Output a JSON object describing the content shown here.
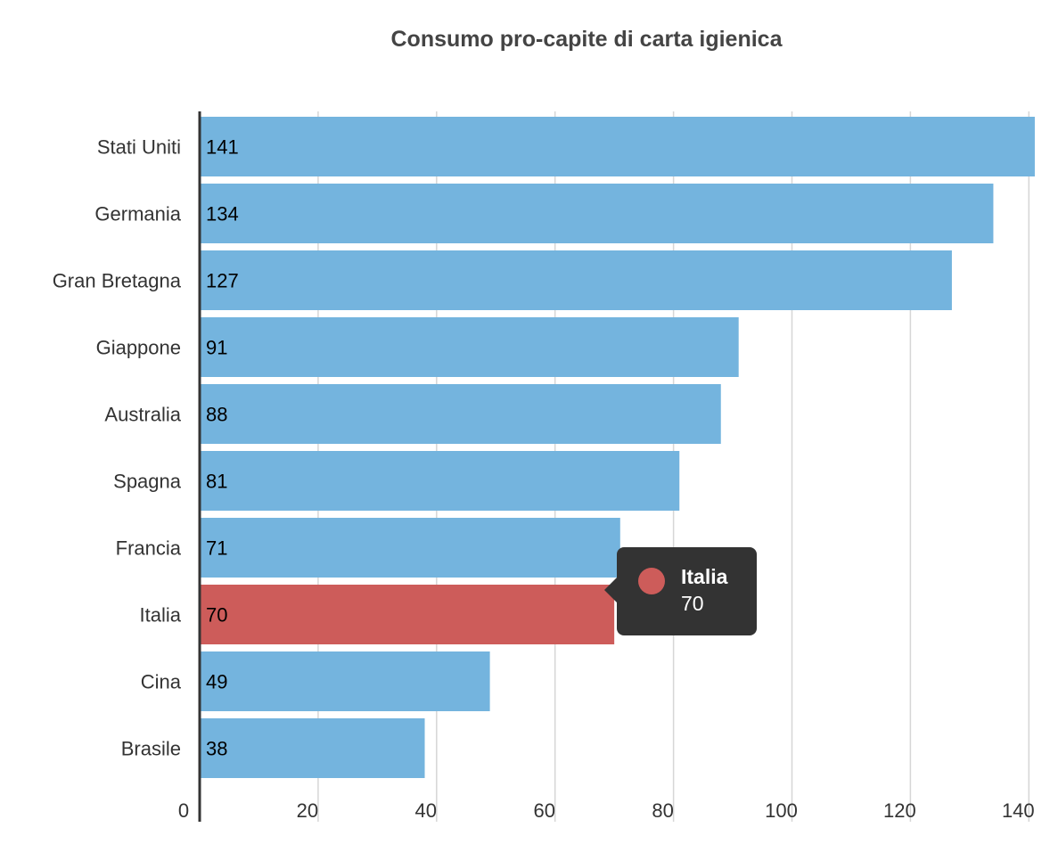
{
  "chart_data": {
    "type": "bar",
    "orientation": "horizontal",
    "title": "Consumo pro-capite di carta igienica",
    "categories": [
      "Stati Uniti",
      "Germania",
      "Gran Bretagna",
      "Giappone",
      "Australia",
      "Spagna",
      "Francia",
      "Italia",
      "Cina",
      "Brasile"
    ],
    "values": [
      141,
      134,
      127,
      91,
      88,
      81,
      71,
      70,
      49,
      38
    ],
    "highlighted": "Italia",
    "xlim": [
      0,
      142
    ],
    "xticks": [
      0,
      20,
      40,
      60,
      80,
      100,
      120,
      140
    ],
    "grid": true,
    "xlabel": "",
    "ylabel": "",
    "colors": {
      "bar": "#74b4de",
      "highlight": "#cd5c5a",
      "grid": "#d6d6d6",
      "axis": "#333333"
    }
  },
  "tooltip": {
    "name": "Italia",
    "value": "70"
  }
}
